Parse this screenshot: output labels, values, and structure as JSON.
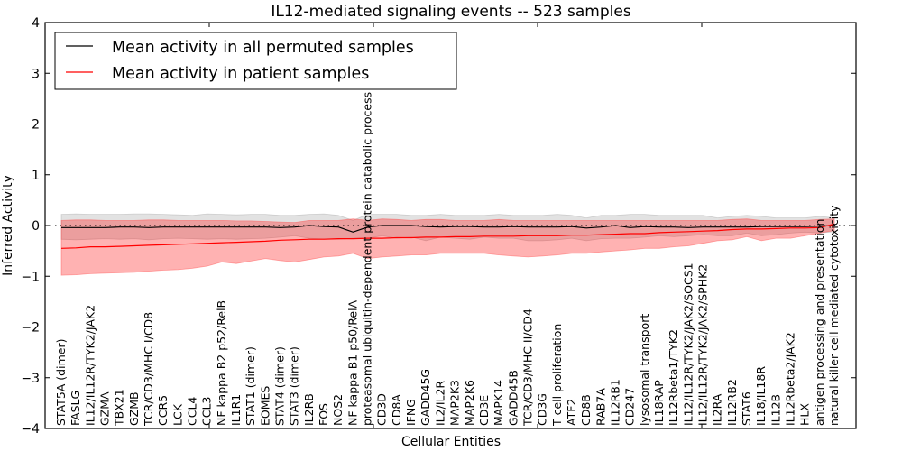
{
  "chart_data": {
    "type": "line",
    "title": "IL12-mediated signaling events -- 523 samples",
    "xlabel": "Cellular Entities",
    "ylabel": "Inferred Activity",
    "ylim": [
      -4,
      4
    ],
    "yticks": [
      "4",
      "3",
      "2",
      "1",
      "0",
      "−1",
      "−2",
      "−3",
      "−4"
    ],
    "ytick_values": [
      4,
      3,
      2,
      1,
      0,
      -1,
      -2,
      -3,
      -4
    ],
    "reference_line": 0,
    "legend": {
      "placement": "top-left",
      "entries": [
        {
          "label": "Mean activity in all permuted samples",
          "color": "#000000"
        },
        {
          "label": "Mean activity in patient samples",
          "color": "#ff0000"
        }
      ]
    },
    "categories": [
      "STAT5A (dimer)",
      "FASLG",
      "IL12/IL12R/TYK2/JAK2",
      "GZMA",
      "TBX21",
      "GZMB",
      "TCR/CD3/MHC I/CD8",
      "CCR5",
      "LCK",
      "CCL4",
      "CCL3",
      "NF kappa B2 p52/RelB",
      "IL1R1",
      "STAT1 (dimer)",
      "EOMES",
      "STAT4 (dimer)",
      "STAT3 (dimer)",
      "IL2RB",
      "FOS",
      "NOS2",
      "NF kappa B1 p50/RelA",
      "proteasomal ubiquitin-dependent protein catabolic process",
      "CD3D",
      "CD8A",
      "IFNG",
      "GADD45G",
      "IL2/IL2R",
      "MAP2K3",
      "MAP2K6",
      "CD3E",
      "MAPK14",
      "GADD45B",
      "TCR/CD3/MHC II/CD4",
      "CD3G",
      "T cell proliferation",
      "ATF2",
      "CD8B",
      "RAB7A",
      "IL12RB1",
      "CD247",
      "lysosomal transport",
      "IL18RAP",
      "IL12Rbeta1/TYK2",
      "IL12/IL12R/TYK2/JAK2/SOCS1",
      "IL12/IL12R/TYK2/JAK2/SPHK2",
      "IL2RA",
      "IL12RB2",
      "STAT6",
      "IL18/IL18R",
      "IL12B",
      "IL12Rbeta2/JAK2",
      "HLX",
      "antigen processing and presentation",
      "natural killer cell mediated cytotoxicity"
    ],
    "series": [
      {
        "name": "Mean activity in all permuted samples",
        "color": "#000000",
        "values": [
          -0.04,
          -0.04,
          -0.04,
          -0.04,
          -0.03,
          -0.03,
          -0.04,
          -0.03,
          -0.03,
          -0.03,
          -0.03,
          -0.03,
          -0.03,
          -0.03,
          -0.03,
          -0.04,
          -0.03,
          0.0,
          -0.02,
          -0.03,
          -0.13,
          -0.03,
          0.0,
          0.0,
          0.0,
          -0.02,
          -0.03,
          -0.02,
          -0.02,
          -0.03,
          -0.03,
          -0.02,
          -0.03,
          -0.03,
          -0.03,
          -0.02,
          -0.05,
          -0.03,
          0.0,
          -0.04,
          -0.02,
          -0.03,
          -0.03,
          -0.04,
          -0.03,
          -0.03,
          -0.03,
          -0.03,
          -0.02,
          -0.02,
          -0.02,
          -0.02,
          -0.01,
          0.0
        ],
        "band_upper": [
          0.22,
          0.23,
          0.22,
          0.22,
          0.22,
          0.23,
          0.23,
          0.22,
          0.21,
          0.2,
          0.23,
          0.22,
          0.21,
          0.22,
          0.22,
          0.2,
          0.2,
          0.22,
          0.23,
          0.2,
          0.1,
          0.22,
          0.22,
          0.22,
          0.2,
          0.2,
          0.22,
          0.2,
          0.2,
          0.2,
          0.22,
          0.2,
          0.2,
          0.2,
          0.22,
          0.2,
          0.15,
          0.2,
          0.2,
          0.22,
          0.22,
          0.2,
          0.2,
          0.2,
          0.2,
          0.15,
          0.18,
          0.2,
          0.18,
          0.15,
          0.15,
          0.15,
          0.18,
          0.15
        ],
        "band_lower": [
          -0.27,
          -0.28,
          -0.27,
          -0.26,
          -0.27,
          -0.26,
          -0.28,
          -0.26,
          -0.25,
          -0.26,
          -0.27,
          -0.26,
          -0.27,
          -0.26,
          -0.25,
          -0.23,
          -0.2,
          -0.25,
          -0.27,
          -0.27,
          -0.25,
          -0.25,
          -0.2,
          -0.25,
          -0.23,
          -0.3,
          -0.23,
          -0.25,
          -0.27,
          -0.23,
          -0.25,
          -0.25,
          -0.3,
          -0.3,
          -0.28,
          -0.25,
          -0.3,
          -0.26,
          -0.25,
          -0.25,
          -0.23,
          -0.2,
          -0.22,
          -0.2,
          -0.18,
          -0.2,
          -0.2,
          -0.15,
          -0.2,
          -0.18,
          -0.15,
          -0.13,
          -0.15,
          -0.12
        ]
      },
      {
        "name": "Mean activity in patient samples",
        "color": "#ff0000",
        "values": [
          -0.45,
          -0.44,
          -0.42,
          -0.42,
          -0.41,
          -0.4,
          -0.39,
          -0.38,
          -0.37,
          -0.36,
          -0.35,
          -0.34,
          -0.33,
          -0.32,
          -0.31,
          -0.29,
          -0.28,
          -0.27,
          -0.27,
          -0.26,
          -0.26,
          -0.25,
          -0.25,
          -0.24,
          -0.24,
          -0.23,
          -0.23,
          -0.22,
          -0.22,
          -0.21,
          -0.21,
          -0.21,
          -0.2,
          -0.2,
          -0.2,
          -0.19,
          -0.19,
          -0.18,
          -0.17,
          -0.16,
          -0.16,
          -0.14,
          -0.13,
          -0.12,
          -0.11,
          -0.1,
          -0.08,
          -0.07,
          -0.07,
          -0.06,
          -0.05,
          -0.05,
          -0.04,
          0.03
        ],
        "band_upper": [
          0.1,
          0.11,
          0.11,
          0.1,
          0.1,
          0.1,
          0.11,
          0.11,
          0.1,
          0.1,
          0.1,
          0.1,
          0.09,
          0.09,
          0.08,
          0.07,
          0.06,
          0.1,
          0.1,
          0.1,
          0.13,
          0.1,
          0.13,
          0.12,
          0.1,
          0.12,
          0.12,
          0.1,
          0.1,
          0.1,
          0.12,
          0.1,
          0.1,
          0.1,
          0.1,
          0.1,
          0.1,
          0.1,
          0.1,
          0.1,
          0.1,
          0.1,
          0.1,
          0.1,
          0.1,
          0.1,
          0.12,
          0.13,
          0.1,
          0.1,
          0.1,
          0.1,
          0.12,
          0.13
        ],
        "band_lower": [
          -0.98,
          -0.97,
          -0.95,
          -0.94,
          -0.93,
          -0.92,
          -0.9,
          -0.88,
          -0.87,
          -0.84,
          -0.8,
          -0.72,
          -0.75,
          -0.7,
          -0.65,
          -0.69,
          -0.72,
          -0.67,
          -0.62,
          -0.6,
          -0.55,
          -0.65,
          -0.62,
          -0.6,
          -0.58,
          -0.58,
          -0.55,
          -0.55,
          -0.55,
          -0.55,
          -0.58,
          -0.6,
          -0.62,
          -0.6,
          -0.58,
          -0.55,
          -0.55,
          -0.52,
          -0.5,
          -0.48,
          -0.45,
          -0.45,
          -0.42,
          -0.4,
          -0.35,
          -0.3,
          -0.28,
          -0.22,
          -0.3,
          -0.25,
          -0.25,
          -0.2,
          -0.15,
          -0.1
        ]
      }
    ]
  }
}
